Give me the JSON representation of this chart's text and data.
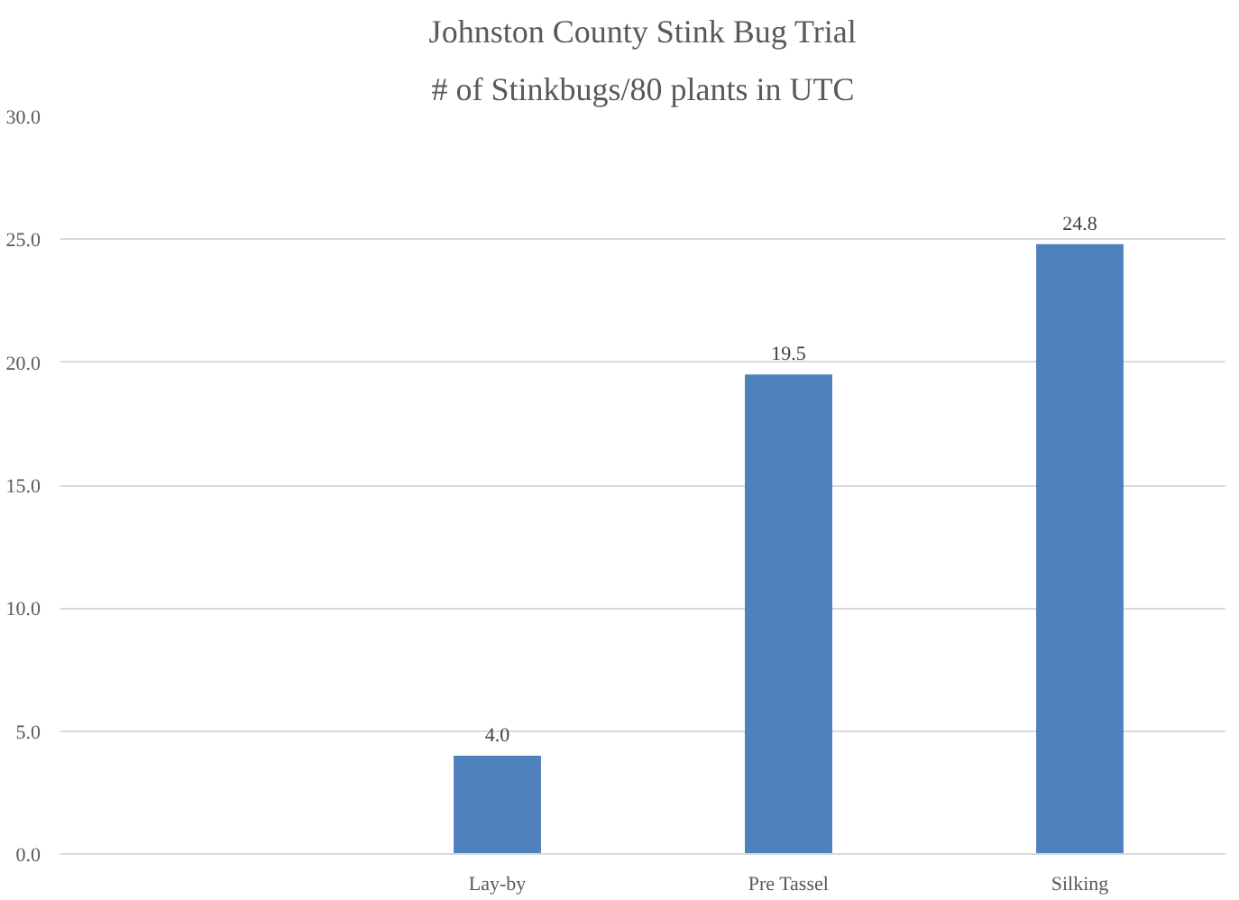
{
  "chart_data": {
    "type": "bar",
    "title": "Johnston County Stink Bug Trial",
    "subtitle": "# of Stinkbugs/80 plants in UTC",
    "categories": [
      null,
      "Lay-by",
      "Pre Tassel",
      "Silking"
    ],
    "values": [
      null,
      4.0,
      19.5,
      24.8
    ],
    "color": "#4f81bd",
    "ylim": [
      0,
      30
    ],
    "yticks": [
      {
        "value": 0,
        "label": "0.0"
      },
      {
        "value": 5,
        "label": "5.0"
      },
      {
        "value": 10,
        "label": "10.0"
      },
      {
        "value": 15,
        "label": "15.0"
      },
      {
        "value": 20,
        "label": "20.0"
      },
      {
        "value": 25,
        "label": "25.0"
      },
      {
        "value": 30,
        "label": "30.0"
      }
    ],
    "value_labels": [
      null,
      "4.0",
      "19.5",
      "24.8"
    ],
    "grid": "y"
  }
}
